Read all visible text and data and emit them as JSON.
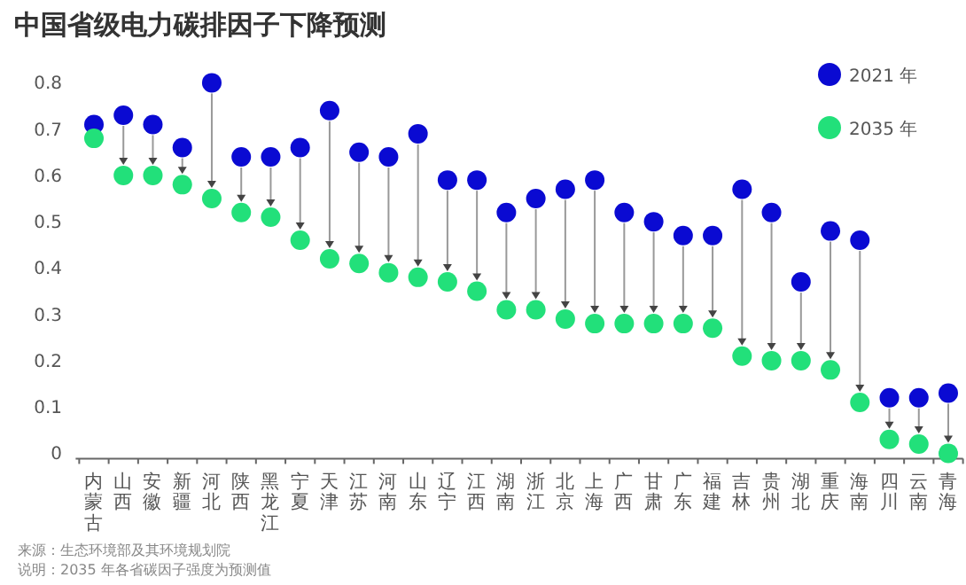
{
  "chart_data": {
    "type": "scatter",
    "title": "中国省级电力碳排因子下降预测",
    "categories": [
      "内蒙古",
      "山西",
      "安徽",
      "新疆",
      "河北",
      "陕西",
      "黑龙江",
      "宁夏",
      "天津",
      "江苏",
      "河南",
      "山东",
      "辽宁",
      "江西",
      "湖南",
      "浙江",
      "北京",
      "上海",
      "广西",
      "甘肃",
      "广东",
      "福建",
      "吉林",
      "贵州",
      "湖北",
      "重庆",
      "海南",
      "四川",
      "云南",
      "青海"
    ],
    "series": [
      {
        "name": "2021 年",
        "color": "#0a0ad2",
        "values": [
          0.71,
          0.73,
          0.71,
          0.66,
          0.8,
          0.64,
          0.64,
          0.66,
          0.74,
          0.65,
          0.64,
          0.69,
          0.59,
          0.59,
          0.52,
          0.55,
          0.57,
          0.59,
          0.52,
          0.5,
          0.47,
          0.47,
          0.57,
          0.52,
          0.37,
          0.48,
          0.46,
          0.12,
          0.12,
          0.13
        ]
      },
      {
        "name": "2035 年",
        "color": "#22e07a",
        "values": [
          0.68,
          0.6,
          0.6,
          0.58,
          0.55,
          0.52,
          0.51,
          0.46,
          0.42,
          0.41,
          0.39,
          0.38,
          0.37,
          0.35,
          0.31,
          0.31,
          0.29,
          0.28,
          0.28,
          0.28,
          0.28,
          0.27,
          0.21,
          0.2,
          0.2,
          0.18,
          0.11,
          0.03,
          0.02,
          0.0
        ]
      }
    ],
    "ylim": [
      0,
      0.8
    ],
    "yticks": [
      0,
      0.1,
      0.2,
      0.3,
      0.4,
      0.5,
      0.6,
      0.7,
      0.8
    ],
    "legend": "top right",
    "marker": "circle",
    "annotations": [
      "来源：生态环境部及其环境规划院",
      "说明：2035 年各省碳因子强度为预测值"
    ]
  }
}
